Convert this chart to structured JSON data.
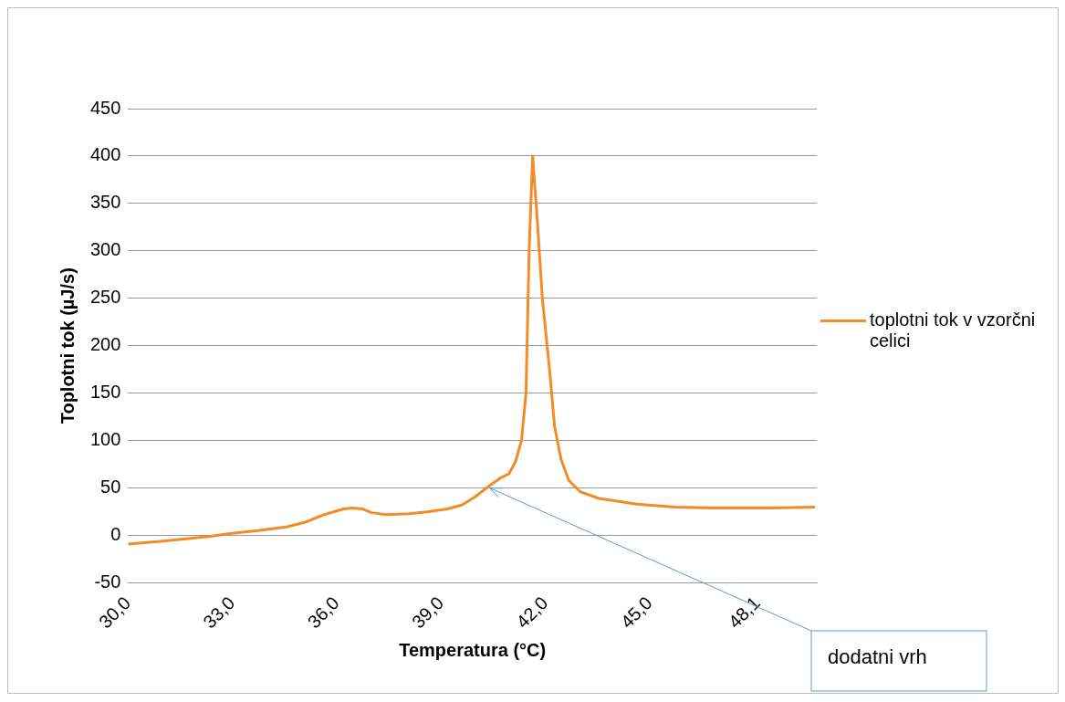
{
  "chart_data": {
    "type": "line",
    "xlabel": "Temperatura (°C)",
    "ylabel": "Toplotni tok (µJ/s)",
    "x": [
      30.0,
      31.01,
      32.37,
      32.92,
      33.73,
      34.55,
      35.1,
      35.64,
      36.19,
      36.46,
      36.73,
      37.0,
      37.41,
      38.09,
      38.64,
      39.18,
      39.59,
      39.95,
      40.41,
      40.68,
      40.95,
      41.14,
      41.31,
      41.44,
      41.53,
      41.63,
      41.77,
      41.91,
      42.13,
      42.26,
      42.45,
      42.67,
      43.0,
      43.54,
      44.63,
      45.72,
      46.81,
      48.45,
      49.75
    ],
    "series": [
      {
        "name": "toplotni tok v vzorčni celici",
        "color": "#f28c28",
        "values": [
          -9,
          -6,
          -1,
          2,
          5,
          9,
          14,
          22,
          28,
          29,
          28,
          24,
          22,
          23,
          25,
          28,
          32,
          40,
          53,
          60,
          65,
          78,
          100,
          150,
          300,
          400,
          330,
          250,
          170,
          115,
          80,
          58,
          46,
          39,
          33,
          30,
          29,
          29,
          30
        ]
      }
    ],
    "xlim": [
      30,
      49.8
    ],
    "xticks": [
      {
        "value": 30,
        "label": "30,0"
      },
      {
        "value": 33,
        "label": "33,0"
      },
      {
        "value": 36,
        "label": "36,0"
      },
      {
        "value": 39,
        "label": "39,0"
      },
      {
        "value": 42,
        "label": "42,0"
      },
      {
        "value": 45,
        "label": "45,0"
      },
      {
        "value": 48.1,
        "label": "48,1"
      }
    ],
    "ylim": [
      -50,
      450
    ],
    "yticks": [
      -50,
      0,
      50,
      100,
      150,
      200,
      250,
      300,
      350,
      400,
      450
    ],
    "grid": "y",
    "legend": "right",
    "marker": "none",
    "line_style": "solid",
    "annotations": [
      {
        "text": "dodatni vrh",
        "x": 40.4,
        "y": 50
      }
    ]
  }
}
